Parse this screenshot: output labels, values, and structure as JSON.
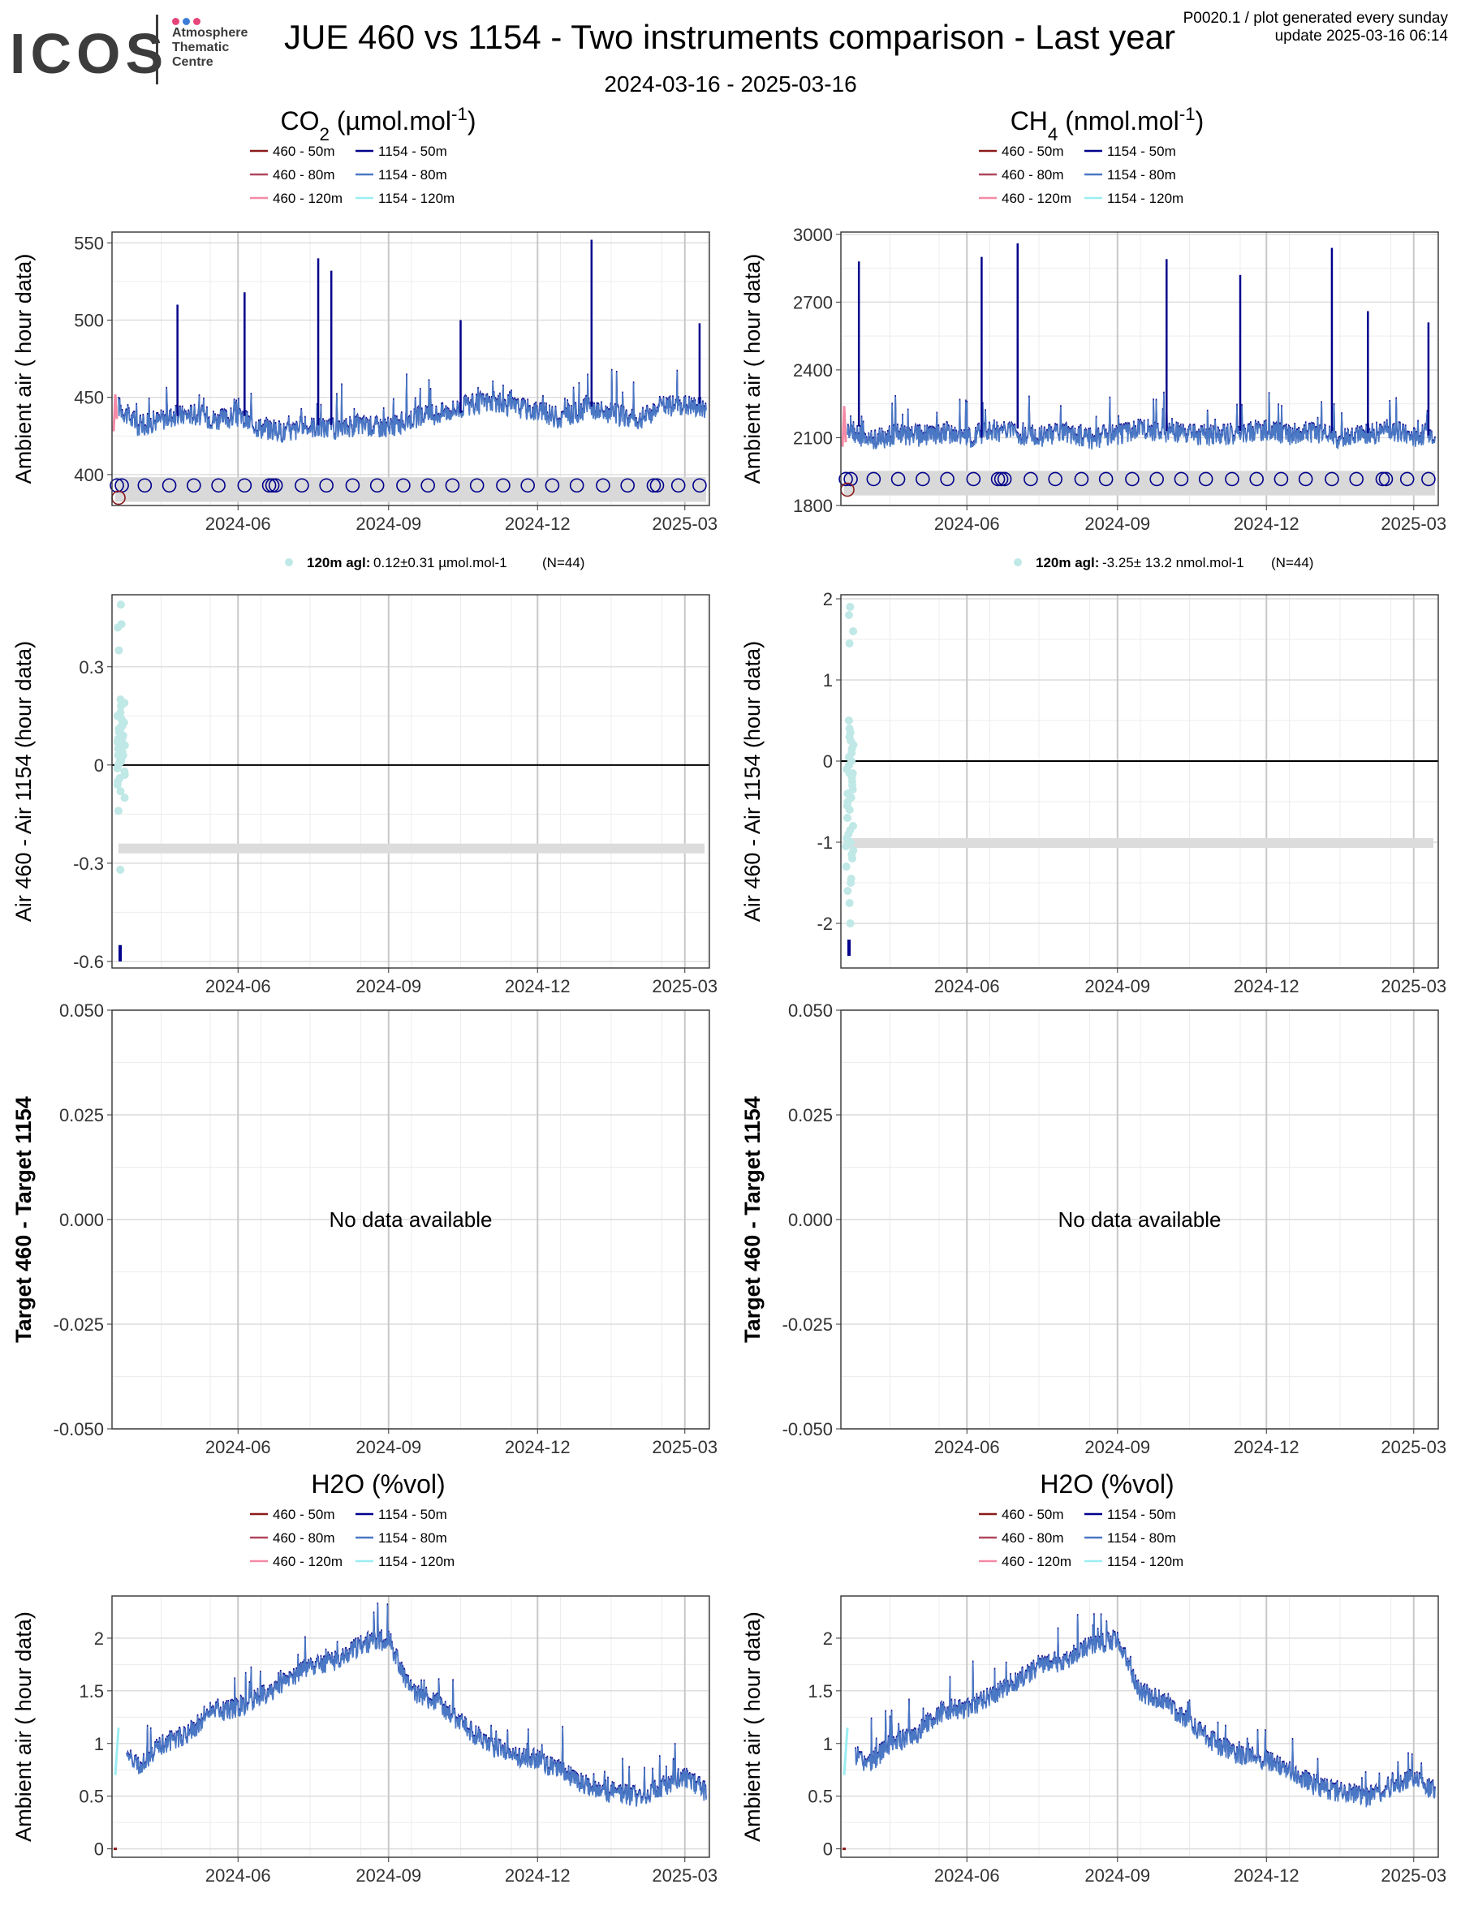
{
  "header": {
    "logo_text": "ICOS",
    "logo_sub": [
      "Atmosphere",
      "Thematic",
      "Centre"
    ],
    "title": "JUE 460 vs 1154 - Two instruments comparison - Last year",
    "subtitle": "2024-03-16 - 2025-03-16",
    "meta_line1": "P0020.1 / plot generated every sunday",
    "meta_line2": "update  2025-03-16 06:14",
    "logo_dot_colors": [
      "#e6457a",
      "#3d7dd8",
      "#e6457a"
    ]
  },
  "time_axis": {
    "tick_labels": [
      "2024-06",
      "2024-09",
      "2024-12",
      "2025-03"
    ]
  },
  "legend": {
    "entries": [
      {
        "label": "460 - 50m",
        "color": "#8b1a1a"
      },
      {
        "label": "1154 - 50m",
        "color": "#00008b"
      },
      {
        "label": "460 - 80m",
        "color": "#b0475e"
      },
      {
        "label": "1154 - 80m",
        "color": "#4a78c4"
      },
      {
        "label": "460 - 120m",
        "color": "#f48aa6"
      },
      {
        "label": "1154 - 120m",
        "color": "#9beef2"
      }
    ]
  },
  "panels": {
    "co2_title": "CO2 (µmol.mol-1)",
    "ch4_title": "CH4 (nmol.mol-1)",
    "h2o_title": "H2O (%vol)",
    "ylabel_ambient": "Ambient air ( hour data)",
    "ylabel_diff": "Air 460 - Air 1154 (hour data)",
    "ylabel_target": "Target 460 - Target 1154",
    "no_data": "No data available",
    "co2_stats": {
      "level": "120m agl:",
      "value": "0.12±0.31 µmol.mol-1",
      "n": "(N=44)"
    },
    "ch4_stats": {
      "level": "120m agl:",
      "value": "-3.25± 13.2 nmol.mol-1",
      "n": "(N=44)"
    }
  },
  "chart_data": [
    {
      "id": "co2_ambient",
      "type": "line",
      "title": "CO2 (µmol.mol-1)",
      "ylabel": "Ambient air ( hour data)",
      "ylim": [
        380,
        557
      ],
      "yticks": [
        400,
        450,
        500,
        550
      ],
      "xlim": [
        "2024-03-16",
        "2025-03-16"
      ],
      "series": [
        {
          "name": "1154 - 80m",
          "x": [
            "2024-03-20",
            "2024-04-01",
            "2024-04-20",
            "2024-05-05",
            "2024-05-20",
            "2024-06-01",
            "2024-06-15",
            "2024-07-01",
            "2024-07-15",
            "2024-08-01",
            "2024-08-15",
            "2024-09-01",
            "2024-09-15",
            "2024-10-01",
            "2024-10-15",
            "2024-11-01",
            "2024-11-15",
            "2024-12-01",
            "2024-12-15",
            "2025-01-01",
            "2025-01-15",
            "2025-02-01",
            "2025-02-15",
            "2025-03-01",
            "2025-03-14"
          ],
          "values": [
            445,
            432,
            438,
            440,
            436,
            438,
            431,
            428,
            432,
            430,
            433,
            431,
            437,
            440,
            444,
            448,
            445,
            442,
            437,
            444,
            440,
            436,
            445,
            446,
            443
          ]
        },
        {
          "name": "1154 - 50m",
          "x": [
            "2024-04-25",
            "2024-06-05",
            "2024-07-20",
            "2024-07-28",
            "2024-10-15",
            "2025-01-03",
            "2025-03-10"
          ],
          "values": [
            510,
            518,
            540,
            532,
            500,
            552,
            498
          ]
        },
        {
          "name": "460 - 120m",
          "x": [
            "2024-03-17",
            "2024-03-18",
            "2024-03-19"
          ],
          "values": [
            428,
            452,
            436
          ]
        }
      ],
      "target_markers_1154": [
        "2024-03-19",
        "2024-03-22",
        "2024-04-05",
        "2024-04-20",
        "2024-05-05",
        "2024-05-20",
        "2024-06-05",
        "2024-06-20",
        "2024-06-22",
        "2024-06-24",
        "2024-07-10",
        "2024-07-25",
        "2024-08-10",
        "2024-08-25",
        "2024-09-10",
        "2024-09-25",
        "2024-10-10",
        "2024-10-25",
        "2024-11-10",
        "2024-11-25",
        "2024-12-10",
        "2024-12-25",
        "2025-01-10",
        "2025-01-25",
        "2025-02-10",
        "2025-02-12",
        "2025-02-25",
        "2025-03-10"
      ],
      "target_level_1154": 393,
      "target_marker_460": {
        "x": "2024-03-18",
        "y": 385
      }
    },
    {
      "id": "ch4_ambient",
      "type": "line",
      "title": "CH4 (nmol.mol-1)",
      "ylabel": "Ambient air ( hour data)",
      "ylim": [
        1800,
        3010
      ],
      "yticks": [
        1800,
        2100,
        2400,
        2700,
        3000
      ],
      "xlim": [
        "2024-03-16",
        "2025-03-16"
      ],
      "series": [
        {
          "name": "1154 - 80m",
          "x": [
            "2024-03-20",
            "2024-04-01",
            "2024-04-20",
            "2024-05-05",
            "2024-05-20",
            "2024-06-01",
            "2024-06-15",
            "2024-07-01",
            "2024-07-15",
            "2024-08-01",
            "2024-08-15",
            "2024-09-01",
            "2024-09-15",
            "2024-10-01",
            "2024-10-15",
            "2024-11-01",
            "2024-11-15",
            "2024-12-01",
            "2024-12-15",
            "2025-01-01",
            "2025-01-15",
            "2025-02-01",
            "2025-02-15",
            "2025-03-01",
            "2025-03-14"
          ],
          "values": [
            2150,
            2090,
            2120,
            2110,
            2130,
            2100,
            2140,
            2120,
            2110,
            2130,
            2100,
            2120,
            2140,
            2130,
            2120,
            2110,
            2130,
            2140,
            2120,
            2130,
            2100,
            2120,
            2140,
            2110,
            2130
          ]
        },
        {
          "name": "1154 - 50m",
          "x": [
            "2024-03-27",
            "2024-06-10",
            "2024-07-02",
            "2024-10-01",
            "2024-11-15",
            "2025-01-10",
            "2025-02-01",
            "2025-03-10"
          ],
          "values": [
            2880,
            2900,
            2960,
            2890,
            2820,
            2940,
            2660,
            2610
          ]
        },
        {
          "name": "460 - 120m",
          "x": [
            "2024-03-17",
            "2024-03-18",
            "2024-03-19"
          ],
          "values": [
            2060,
            2240,
            2080
          ]
        }
      ],
      "target_markers_1154": [
        "2024-03-19",
        "2024-03-22",
        "2024-04-05",
        "2024-04-20",
        "2024-05-05",
        "2024-05-20",
        "2024-06-05",
        "2024-06-20",
        "2024-06-22",
        "2024-06-24",
        "2024-07-10",
        "2024-07-25",
        "2024-08-10",
        "2024-08-25",
        "2024-09-10",
        "2024-09-25",
        "2024-10-10",
        "2024-10-25",
        "2024-11-10",
        "2024-11-25",
        "2024-12-10",
        "2024-12-25",
        "2025-01-10",
        "2025-01-25",
        "2025-02-10",
        "2025-02-12",
        "2025-02-25",
        "2025-03-10"
      ],
      "target_level_1154": 1917,
      "target_marker_460": {
        "x": "2024-03-18",
        "y": 1870
      }
    },
    {
      "id": "co2_diff",
      "type": "scatter",
      "ylabel": "Air 460 - Air 1154 (hour data)",
      "ylim": [
        -0.62,
        0.52
      ],
      "yticks": [
        -0.6,
        -0.3,
        0.0,
        0.3
      ],
      "xlim": [
        "2024-03-16",
        "2025-03-16"
      ],
      "points_120m": [
        0.49,
        0.43,
        0.42,
        0.35,
        0.2,
        0.18,
        0.15,
        0.13,
        0.12,
        0.11,
        0.1,
        0.09,
        0.08,
        0.07,
        0.06,
        0.05,
        0.04,
        0.03,
        0.02,
        0.01,
        0.0,
        -0.01,
        -0.02,
        -0.03,
        -0.05,
        -0.08,
        -0.1,
        -0.14,
        -0.32,
        0.14,
        0.12,
        0.1,
        0.08,
        0.06,
        0.16,
        0.11,
        0.09,
        0.07,
        0.05,
        0.03,
        0.01,
        -0.04,
        -0.06,
        0.19
      ],
      "mean_band": [
        -0.27,
        -0.24
      ],
      "bar_50m": [
        -0.6,
        -0.55
      ]
    },
    {
      "id": "ch4_diff",
      "type": "scatter",
      "ylabel": "Air 460 - Air 1154 (hour data)",
      "ylim": [
        -2.55,
        2.05
      ],
      "yticks": [
        -2,
        -1,
        0,
        1,
        2
      ],
      "xlim": [
        "2024-03-16",
        "2025-03-16"
      ],
      "points_120m": [
        1.9,
        1.8,
        1.6,
        1.45,
        0.5,
        0.35,
        0.25,
        0.15,
        0.05,
        -0.05,
        -0.15,
        -0.25,
        -0.4,
        -0.55,
        -0.7,
        -0.85,
        -0.95,
        -1.05,
        -1.15,
        -1.3,
        -1.45,
        -1.6,
        -1.75,
        -2.0,
        0.3,
        0.1,
        -0.1,
        -0.3,
        -0.5,
        -0.2,
        0.0,
        -0.6,
        -0.8,
        -1.0,
        -1.2,
        0.2,
        -0.35,
        -0.45,
        -0.9,
        -1.1,
        -0.15,
        0.4,
        -0.7,
        -1.5
      ],
      "mean_band": [
        -1.07,
        -0.95
      ],
      "bar_50m": [
        -2.4,
        -2.2
      ]
    },
    {
      "id": "co2_target",
      "type": "line",
      "ylabel": "Target 460 - Target 1154",
      "ylim": [
        -0.05,
        0.05
      ],
      "yticks": [
        -0.05,
        -0.025,
        0.0,
        0.025,
        0.05
      ],
      "ytick_labels": [
        "-0.050",
        "-0.025",
        "0.000",
        "0.025",
        "0.050"
      ],
      "xlim": [
        "2024-03-16",
        "2025-03-16"
      ],
      "series": []
    },
    {
      "id": "ch4_target",
      "type": "line",
      "ylabel": "Target 460 - Target 1154",
      "ylim": [
        -0.05,
        0.05
      ],
      "yticks": [
        -0.05,
        -0.025,
        0.0,
        0.025,
        0.05
      ],
      "ytick_labels": [
        "-0.050",
        "-0.025",
        "0.000",
        "0.025",
        "0.050"
      ],
      "xlim": [
        "2024-03-16",
        "2025-03-16"
      ],
      "series": []
    },
    {
      "id": "h2o_left",
      "type": "line",
      "title": "H2O (%vol)",
      "ylabel": "Ambient air ( hour data)",
      "ylim": [
        -0.08,
        2.4
      ],
      "yticks": [
        0.0,
        0.5,
        1.0,
        1.5,
        2.0
      ],
      "xlim": [
        "2024-03-16",
        "2025-03-16"
      ],
      "series": [
        {
          "name": "1154 - 80m",
          "x": [
            "2024-03-25",
            "2024-04-01",
            "2024-04-15",
            "2024-05-01",
            "2024-05-15",
            "2024-06-01",
            "2024-06-15",
            "2024-07-01",
            "2024-07-15",
            "2024-08-01",
            "2024-08-15",
            "2024-09-01",
            "2024-09-15",
            "2024-10-01",
            "2024-10-15",
            "2024-11-01",
            "2024-11-15",
            "2024-12-01",
            "2024-12-15",
            "2025-01-01",
            "2025-01-15",
            "2025-02-01",
            "2025-02-15",
            "2025-03-01",
            "2025-03-14"
          ],
          "values": [
            0.9,
            0.8,
            1.0,
            1.1,
            1.3,
            1.35,
            1.45,
            1.6,
            1.75,
            1.8,
            1.95,
            2.0,
            1.5,
            1.4,
            1.2,
            1.0,
            0.9,
            0.85,
            0.75,
            0.6,
            0.55,
            0.5,
            0.6,
            0.7,
            0.55
          ]
        },
        {
          "name": "1154 - 120m",
          "x": [
            "2024-03-18",
            "2024-03-20"
          ],
          "values": [
            0.7,
            1.15
          ]
        },
        {
          "name": "460 - 50m",
          "x": [
            "2024-03-17",
            "2024-03-19"
          ],
          "values": [
            0.0,
            0.0
          ]
        }
      ]
    },
    {
      "id": "h2o_right",
      "type": "line",
      "title": "H2O (%vol)",
      "ylabel": "Ambient air ( hour data)",
      "ylim": [
        -0.08,
        2.4
      ],
      "yticks": [
        0.0,
        0.5,
        1.0,
        1.5,
        2.0
      ],
      "xlim": [
        "2024-03-16",
        "2025-03-16"
      ],
      "series": [
        {
          "name": "1154 - 80m",
          "x": [
            "2024-03-25",
            "2024-04-01",
            "2024-04-15",
            "2024-05-01",
            "2024-05-15",
            "2024-06-01",
            "2024-06-15",
            "2024-07-01",
            "2024-07-15",
            "2024-08-01",
            "2024-08-15",
            "2024-09-01",
            "2024-09-15",
            "2024-10-01",
            "2024-10-15",
            "2024-11-01",
            "2024-11-15",
            "2024-12-01",
            "2024-12-15",
            "2025-01-01",
            "2025-01-15",
            "2025-02-01",
            "2025-02-15",
            "2025-03-01",
            "2025-03-14"
          ],
          "values": [
            0.9,
            0.8,
            1.0,
            1.1,
            1.3,
            1.35,
            1.45,
            1.6,
            1.75,
            1.8,
            1.95,
            2.0,
            1.5,
            1.4,
            1.2,
            1.0,
            0.9,
            0.85,
            0.75,
            0.6,
            0.55,
            0.5,
            0.6,
            0.7,
            0.55
          ]
        },
        {
          "name": "1154 - 120m",
          "x": [
            "2024-03-18",
            "2024-03-20"
          ],
          "values": [
            0.7,
            1.15
          ]
        },
        {
          "name": "460 - 50m",
          "x": [
            "2024-03-17",
            "2024-03-19"
          ],
          "values": [
            0.0,
            0.0
          ]
        }
      ]
    }
  ]
}
